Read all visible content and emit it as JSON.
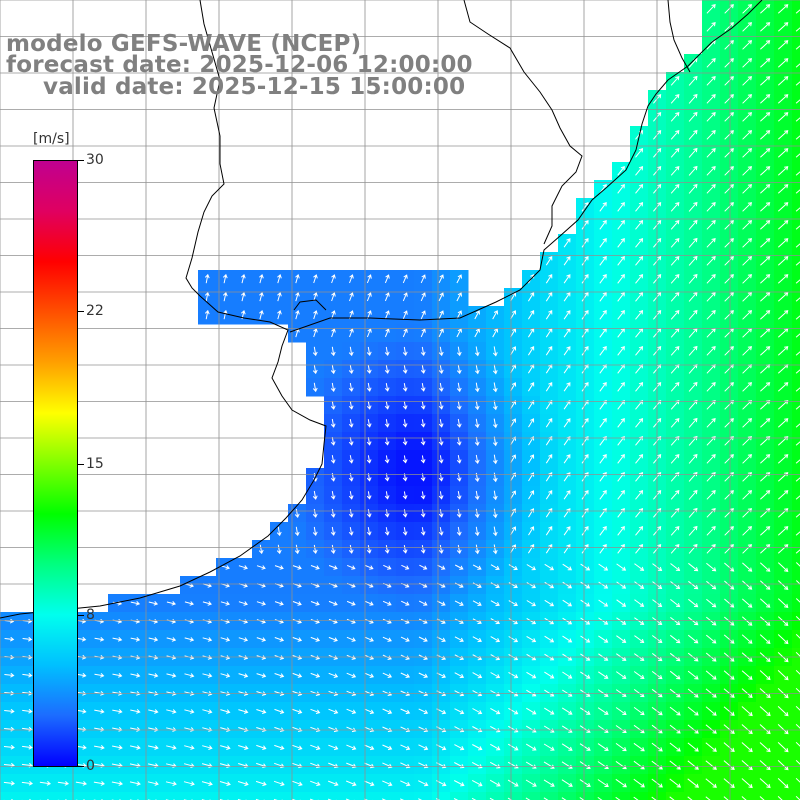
{
  "titles": {
    "model": "modelo GEFS-WAVE (NCEP)",
    "forecast": "forecast date: 2025-12-06 12:00:00",
    "valid": "valid date: 2025-12-15 15:00:00"
  },
  "colorbar": {
    "unit": "[m/s]",
    "min": 0,
    "max": 30,
    "ticks": [
      {
        "label": "30",
        "value": 30
      },
      {
        "label": "22",
        "value": 22
      },
      {
        "label": "15",
        "value": 15
      },
      {
        "label": "8",
        "value": 8
      },
      {
        "label": "0",
        "value": 0
      }
    ],
    "colors": [
      "#0000ff",
      "#1c6cff",
      "#00c0ff",
      "#00ffee",
      "#00ff80",
      "#00ff00",
      "#80ff00",
      "#ffff00",
      "#ffa000",
      "#ff5000",
      "#ff0000",
      "#e00060",
      "#c00090"
    ]
  },
  "palette": {
    "land": "#ffffff",
    "coast": "#000000",
    "grid": "#909090",
    "arrow": "#ffffff"
  }
}
